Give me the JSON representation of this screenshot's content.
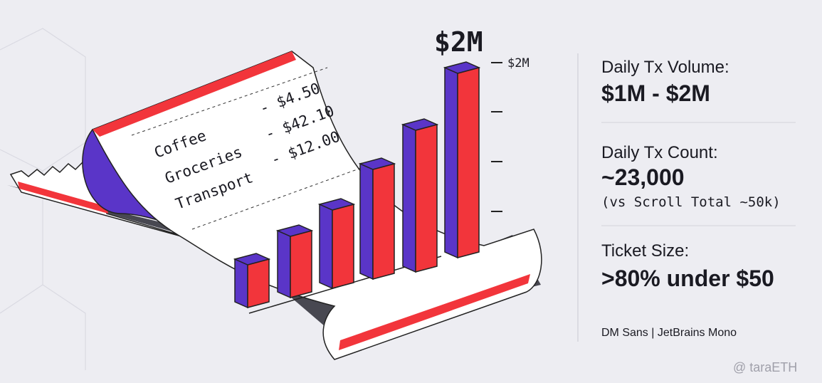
{
  "illustration": {
    "headline": "$2M",
    "axis_label": "$2M",
    "receipt": [
      {
        "item": "Coffee",
        "amount": "- $4.50"
      },
      {
        "item": "Groceries",
        "amount": "- $42.10"
      },
      {
        "item": "Transport",
        "amount": "- $12.00"
      }
    ]
  },
  "stats": [
    {
      "label": "Daily Tx Volume:",
      "value": "$1M - $2M"
    },
    {
      "label": "Daily Tx Count:",
      "value": "~23,000",
      "note": "(vs Scroll Total ~50k)"
    },
    {
      "label": "Ticket Size:",
      "value": ">80% under $50"
    }
  ],
  "footer": "DM Sans | JetBrains Mono",
  "watermark": "@ taraETH"
}
